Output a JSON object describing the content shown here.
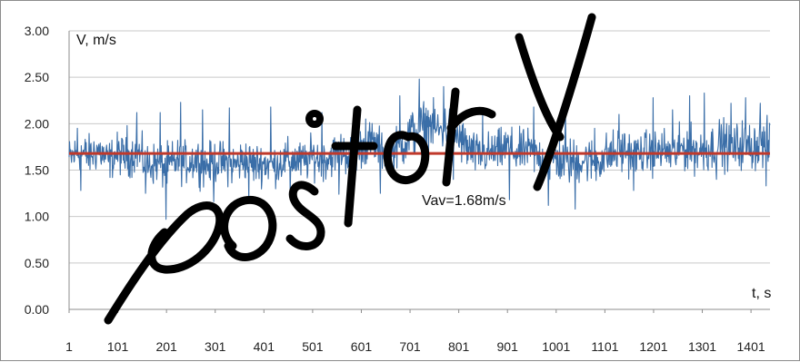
{
  "chart_data": {
    "type": "line",
    "ylabel": "V, m/s",
    "xlabel": "t, s",
    "ylim": [
      0,
      3
    ],
    "xlim": [
      1,
      1440
    ],
    "grid": true,
    "y_ticks": [
      "0.00",
      "0.50",
      "1.00",
      "1.50",
      "2.00",
      "2.50",
      "3.00"
    ],
    "y_tick_values": [
      0,
      0.5,
      1.0,
      1.5,
      2.0,
      2.5,
      3.0
    ],
    "x_ticks": [
      "1",
      "101",
      "201",
      "301",
      "401",
      "501",
      "601",
      "701",
      "801",
      "901",
      "1001",
      "1101",
      "1201",
      "1301",
      "1401"
    ],
    "x_tick_values": [
      1,
      101,
      201,
      301,
      401,
      501,
      601,
      701,
      801,
      901,
      1001,
      1101,
      1201,
      1301,
      1401
    ],
    "series": [
      {
        "color": "#3a6ea8",
        "x": [
          1,
          21,
          41,
          61,
          81,
          101,
          121,
          141,
          161,
          181,
          201,
          221,
          241,
          261,
          281,
          301,
          321,
          341,
          361,
          381,
          401,
          421,
          441,
          461,
          481,
          501,
          521,
          541,
          561,
          581,
          601,
          621,
          641,
          661,
          681,
          701,
          721,
          741,
          761,
          781,
          801,
          821,
          841,
          861,
          881,
          901,
          921,
          941,
          961,
          981,
          1001,
          1021,
          1041,
          1061,
          1081,
          1101,
          1121,
          1141,
          1161,
          1181,
          1201,
          1221,
          1241,
          1261,
          1281,
          1301,
          1321,
          1341,
          1361,
          1381,
          1401,
          1421,
          1440
        ],
        "y": [
          1.62,
          1.7,
          1.65,
          1.72,
          1.6,
          1.68,
          1.63,
          1.7,
          1.55,
          1.58,
          1.52,
          1.6,
          1.58,
          1.62,
          1.55,
          1.6,
          1.58,
          1.55,
          1.62,
          1.56,
          1.58,
          1.55,
          1.6,
          1.62,
          1.58,
          1.65,
          1.6,
          1.66,
          1.7,
          1.65,
          1.75,
          1.8,
          1.72,
          1.7,
          1.75,
          1.88,
          1.95,
          2.0,
          1.92,
          1.98,
          1.85,
          1.72,
          1.65,
          1.68,
          1.7,
          1.75,
          1.68,
          1.72,
          1.65,
          1.6,
          1.62,
          1.58,
          1.6,
          1.62,
          1.58,
          1.65,
          1.68,
          1.72,
          1.66,
          1.7,
          1.68,
          1.72,
          1.66,
          1.75,
          1.72,
          1.7,
          1.75,
          1.8,
          1.72,
          1.78,
          1.75,
          1.8,
          1.76
        ],
        "amplitude": [
          0.16,
          0.15,
          0.16,
          0.16,
          0.15,
          0.16,
          0.15,
          0.16,
          0.17,
          0.16,
          0.18,
          0.17,
          0.16,
          0.17,
          0.16,
          0.16,
          0.16,
          0.17,
          0.16,
          0.16,
          0.16,
          0.16,
          0.16,
          0.16,
          0.16,
          0.16,
          0.16,
          0.16,
          0.16,
          0.16,
          0.16,
          0.17,
          0.16,
          0.16,
          0.17,
          0.2,
          0.2,
          0.18,
          0.18,
          0.18,
          0.18,
          0.18,
          0.16,
          0.16,
          0.16,
          0.17,
          0.17,
          0.16,
          0.17,
          0.18,
          0.18,
          0.18,
          0.18,
          0.18,
          0.18,
          0.18,
          0.18,
          0.18,
          0.16,
          0.16,
          0.17,
          0.17,
          0.17,
          0.18,
          0.18,
          0.18,
          0.18,
          0.19,
          0.18,
          0.19,
          0.19,
          0.19,
          0.19
        ],
        "extremes": [
          [
            18,
            1.95
          ],
          [
            25,
            1.28
          ],
          [
            120,
            1.98
          ],
          [
            140,
            2.12
          ],
          [
            158,
            1.25
          ],
          [
            188,
            2.12
          ],
          [
            200,
            0.97
          ],
          [
            230,
            2.23
          ],
          [
            275,
            2.15
          ],
          [
            298,
            1.16
          ],
          [
            330,
            2.17
          ],
          [
            370,
            1.17
          ],
          [
            415,
            2.18
          ],
          [
            455,
            1.25
          ],
          [
            520,
            2.12
          ],
          [
            555,
            1.24
          ],
          [
            580,
            1.15
          ],
          [
            610,
            2.05
          ],
          [
            640,
            1.25
          ],
          [
            680,
            2.3
          ],
          [
            720,
            2.48
          ],
          [
            770,
            2.4
          ],
          [
            790,
            1.4
          ],
          [
            850,
            2.1
          ],
          [
            905,
            1.18
          ],
          [
            955,
            2.18
          ],
          [
            985,
            1.12
          ],
          [
            1020,
            2.18
          ],
          [
            1040,
            1.08
          ],
          [
            1080,
            1.95
          ],
          [
            1130,
            2.1
          ],
          [
            1160,
            1.28
          ],
          [
            1200,
            2.28
          ],
          [
            1240,
            2.15
          ],
          [
            1275,
            2.3
          ],
          [
            1305,
            2.33
          ],
          [
            1330,
            1.4
          ],
          [
            1360,
            2.22
          ],
          [
            1390,
            2.28
          ],
          [
            1420,
            2.22
          ],
          [
            1432,
            1.33
          ]
        ]
      },
      {
        "color": "#c0392b",
        "x": [
          1,
          1440
        ],
        "y": [
          1.68,
          1.68
        ]
      }
    ],
    "annotations": [
      {
        "text": "Vav=1.68m/s",
        "x": 870,
        "y": 1.3
      }
    ]
  }
}
